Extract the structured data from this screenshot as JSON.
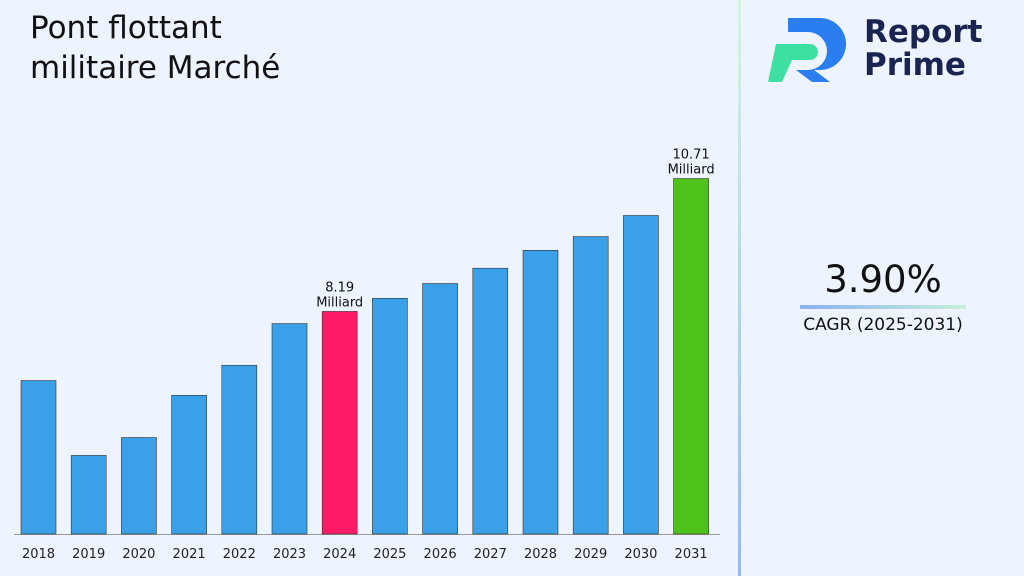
{
  "title_line1": "Pont flottant",
  "title_line2": "militaire Marché",
  "logo": {
    "line1": "Report",
    "line2": "Prime"
  },
  "cagr": {
    "value": "3.90%",
    "label": "CAGR (2025-2031)"
  },
  "chart_data": {
    "type": "bar",
    "categories": [
      "2018",
      "2019",
      "2020",
      "2021",
      "2022",
      "2023",
      "2024",
      "2025",
      "2026",
      "2027",
      "2028",
      "2029",
      "2030",
      "2031"
    ],
    "values": [
      6.88,
      5.46,
      5.8,
      6.6,
      7.17,
      7.96,
      8.19,
      8.44,
      8.72,
      9.01,
      9.35,
      9.61,
      10.01,
      10.71
    ],
    "ylim": [
      3.97,
      12.2
    ],
    "unit": "Milliard",
    "data_labels": {
      "2024": "8.19",
      "2031": "10.71"
    },
    "colors": {
      "default": "#3aa0e8",
      "2024": "#ff1a66",
      "2031": "#4cc21a"
    },
    "grid": false
  }
}
